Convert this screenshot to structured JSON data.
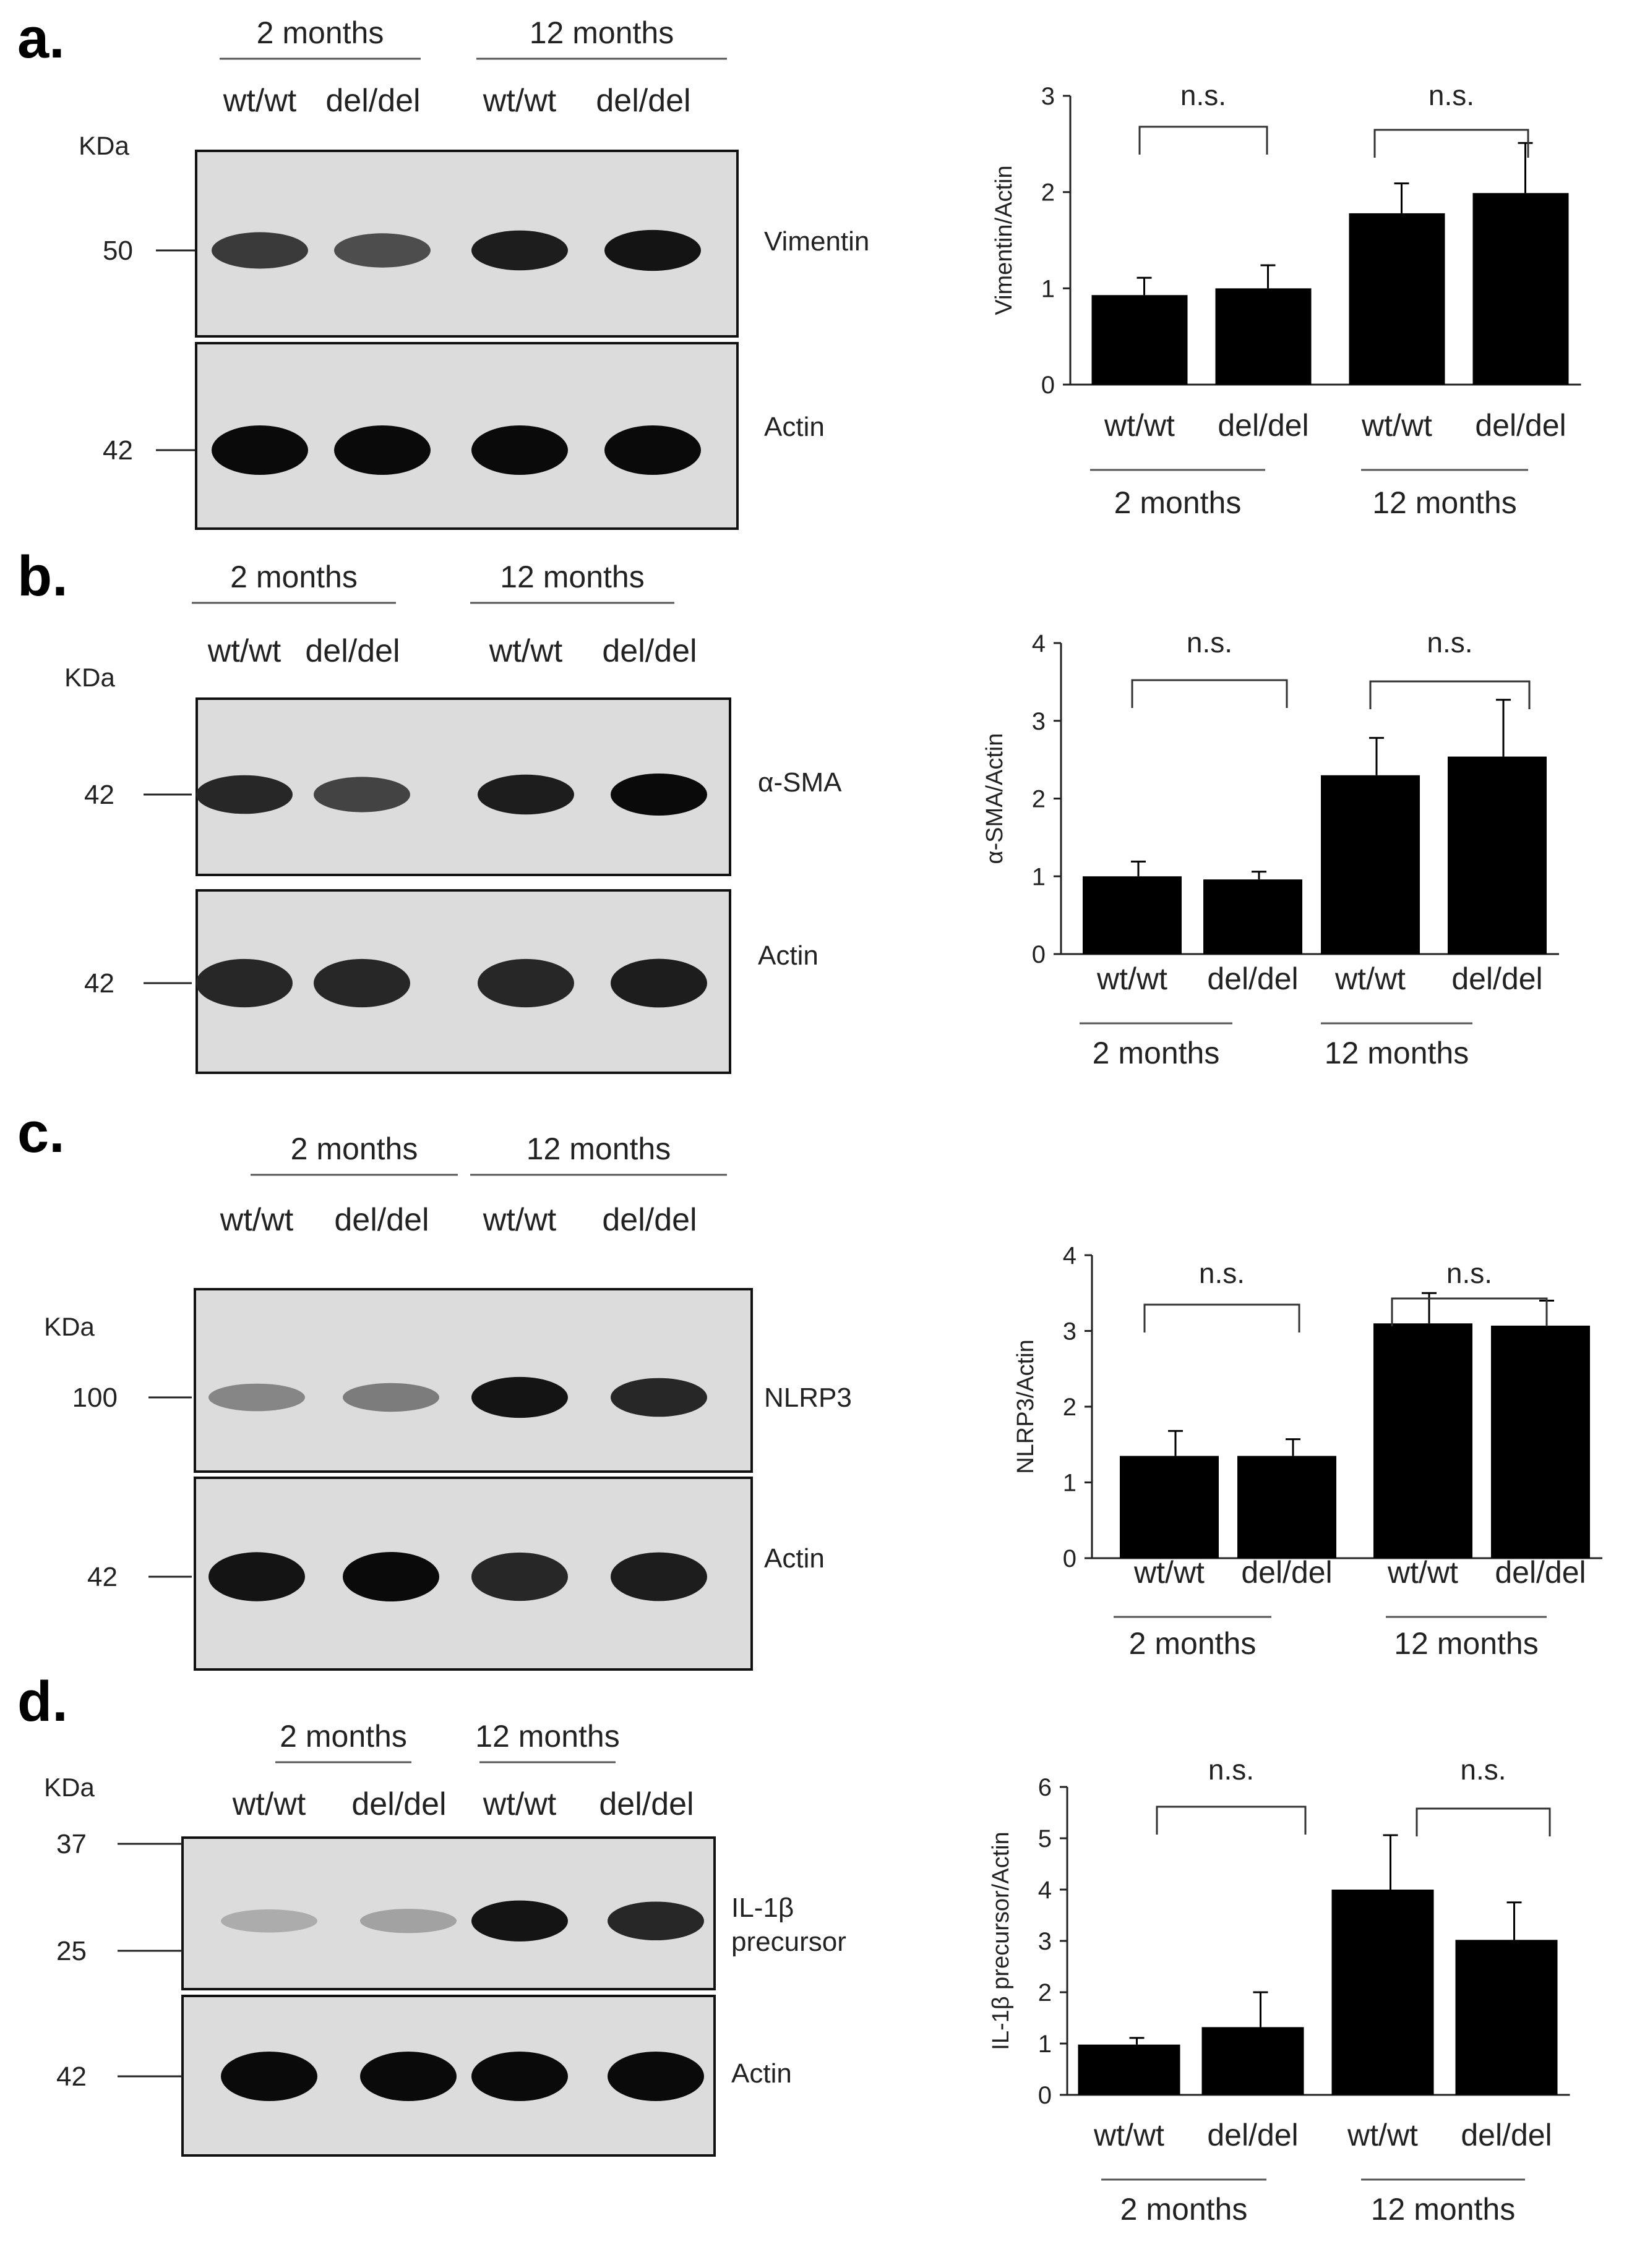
{
  "panels": [
    {
      "letter": "a.",
      "blot": {
        "groups": [
          "2 months",
          "12 months"
        ],
        "lanes": [
          "wt/wt",
          "del/del",
          "wt/wt",
          "del/del"
        ],
        "kda_label": "KDa",
        "blots": [
          {
            "name": "Vimentin",
            "label_lines": [
              "Vimentin"
            ],
            "markers": [
              "50"
            ],
            "band_intensity": [
              0.75,
              0.65,
              0.9,
              0.95
            ]
          },
          {
            "name": "Actin",
            "label_lines": [
              "Actin"
            ],
            "markers": [
              "42"
            ],
            "band_intensity": [
              1,
              1,
              1,
              1
            ]
          }
        ]
      },
      "chart": {
        "type": "bar",
        "ylabel": "Vimentin/Actin",
        "ylim": [
          0,
          3
        ],
        "yticks": [
          "0",
          "1",
          "2",
          "3"
        ],
        "categories": [
          "wt/wt",
          "del/del",
          "wt/wt",
          "del/del"
        ],
        "values": [
          0.93,
          1.0,
          1.78,
          1.99
        ],
        "errors": [
          0.18,
          0.24,
          0.31,
          0.52
        ],
        "groups": [
          "2 months",
          "12 months"
        ],
        "significance": [
          "n.s.",
          "n.s."
        ]
      }
    },
    {
      "letter": "b.",
      "blot": {
        "groups": [
          "2 months",
          "12 months"
        ],
        "lanes": [
          "wt/wt",
          "del/del",
          "wt/wt",
          "del/del"
        ],
        "kda_label": "KDa",
        "blots": [
          {
            "name": "α-SMA",
            "label_lines": [
              "α-SMA"
            ],
            "markers": [
              "42"
            ],
            "band_intensity": [
              0.85,
              0.7,
              0.9,
              1
            ]
          },
          {
            "name": "Actin",
            "label_lines": [
              "Actin"
            ],
            "markers": [
              "42"
            ],
            "band_intensity": [
              0.85,
              0.85,
              0.85,
              0.9
            ]
          }
        ]
      },
      "chart": {
        "type": "bar",
        "ylabel": "α-SMA/Actin",
        "ylim": [
          0,
          4
        ],
        "yticks": [
          "0",
          "1",
          "2",
          "3",
          "4"
        ],
        "categories": [
          "wt/wt",
          "del/del",
          "wt/wt",
          "del/del"
        ],
        "values": [
          1.0,
          0.96,
          2.3,
          2.54
        ],
        "errors": [
          0.19,
          0.1,
          0.48,
          0.73
        ],
        "groups": [
          "2 months",
          "12 months"
        ],
        "significance": [
          "n.s.",
          "n.s."
        ]
      }
    },
    {
      "letter": "c.",
      "blot": {
        "groups": [
          "2 months",
          "12 months"
        ],
        "lanes": [
          "wt/wt",
          "del/del",
          "wt/wt",
          "del/del"
        ],
        "kda_label": "KDa",
        "blots": [
          {
            "name": "NLRP3",
            "label_lines": [
              "NLRP3"
            ],
            "markers": [
              "100"
            ],
            "band_intensity": [
              0.35,
              0.4,
              0.95,
              0.85
            ]
          },
          {
            "name": "Actin",
            "label_lines": [
              "Actin"
            ],
            "markers": [
              "42"
            ],
            "band_intensity": [
              0.95,
              1,
              0.85,
              0.9
            ]
          }
        ]
      },
      "chart": {
        "type": "bar",
        "ylabel": "NLRP3/Actin",
        "ylim": [
          0,
          4
        ],
        "yticks": [
          "0",
          "1",
          "2",
          "3",
          "4"
        ],
        "categories": [
          "wt/wt",
          "del/del",
          "wt/wt",
          "del/del"
        ],
        "values": [
          1.35,
          1.35,
          3.1,
          3.07
        ],
        "errors": [
          0.33,
          0.22,
          0.4,
          0.33
        ],
        "groups": [
          "2 months",
          "12 months"
        ],
        "significance": [
          "n.s.",
          "n.s."
        ]
      }
    },
    {
      "letter": "d.",
      "blot": {
        "groups": [
          "2 months",
          "12 months"
        ],
        "lanes": [
          "wt/wt",
          "del/del",
          "wt/wt",
          "del/del"
        ],
        "kda_label": "KDa",
        "blots": [
          {
            "name": "IL-1β precursor",
            "label_lines": [
              "IL-1β",
              "precursor"
            ],
            "markers": [
              "37",
              "25"
            ],
            "band_intensity": [
              0.15,
              0.2,
              0.95,
              0.85
            ]
          },
          {
            "name": "Actin",
            "label_lines": [
              "Actin"
            ],
            "markers": [
              "42"
            ],
            "band_intensity": [
              1,
              1,
              1,
              1
            ]
          }
        ]
      },
      "chart": {
        "type": "bar",
        "ylabel": "IL-1β precursor/Actin",
        "ylim": [
          0,
          6
        ],
        "yticks": [
          "0",
          "1",
          "2",
          "3",
          "4",
          "5",
          "6"
        ],
        "categories": [
          "wt/wt",
          "del/del",
          "wt/wt",
          "del/del"
        ],
        "values": [
          0.98,
          1.32,
          4.0,
          3.02
        ],
        "errors": [
          0.13,
          0.68,
          1.06,
          0.73
        ],
        "groups": [
          "2 months",
          "12 months"
        ],
        "significance": [
          "n.s.",
          "n.s."
        ]
      }
    }
  ],
  "chart_data": [
    {
      "type": "bar",
      "ylabel": "Vimentin/Actin",
      "ylim": [
        0,
        3
      ],
      "categories": [
        "wt/wt",
        "del/del",
        "wt/wt",
        "del/del"
      ],
      "groups": [
        "2 months",
        "12 months"
      ],
      "values": [
        0.93,
        1.0,
        1.78,
        1.99
      ],
      "errors": [
        0.18,
        0.24,
        0.31,
        0.52
      ],
      "annotations": [
        "n.s.",
        "n.s."
      ]
    },
    {
      "type": "bar",
      "ylabel": "α-SMA/Actin",
      "ylim": [
        0,
        4
      ],
      "categories": [
        "wt/wt",
        "del/del",
        "wt/wt",
        "del/del"
      ],
      "groups": [
        "2 months",
        "12 months"
      ],
      "values": [
        1.0,
        0.96,
        2.3,
        2.54
      ],
      "errors": [
        0.19,
        0.1,
        0.48,
        0.73
      ],
      "annotations": [
        "n.s.",
        "n.s."
      ]
    },
    {
      "type": "bar",
      "ylabel": "NLRP3/Actin",
      "ylim": [
        0,
        4
      ],
      "categories": [
        "wt/wt",
        "del/del",
        "wt/wt",
        "del/del"
      ],
      "groups": [
        "2 months",
        "12 months"
      ],
      "values": [
        1.35,
        1.35,
        3.1,
        3.07
      ],
      "errors": [
        0.33,
        0.22,
        0.4,
        0.33
      ],
      "annotations": [
        "n.s.",
        "n.s."
      ]
    },
    {
      "type": "bar",
      "ylabel": "IL-1β precursor/Actin",
      "ylim": [
        0,
        6
      ],
      "categories": [
        "wt/wt",
        "del/del",
        "wt/wt",
        "del/del"
      ],
      "groups": [
        "2 months",
        "12 months"
      ],
      "values": [
        0.98,
        1.32,
        4.0,
        3.02
      ],
      "errors": [
        0.13,
        0.68,
        1.06,
        0.73
      ],
      "annotations": [
        "n.s.",
        "n.s."
      ]
    }
  ]
}
